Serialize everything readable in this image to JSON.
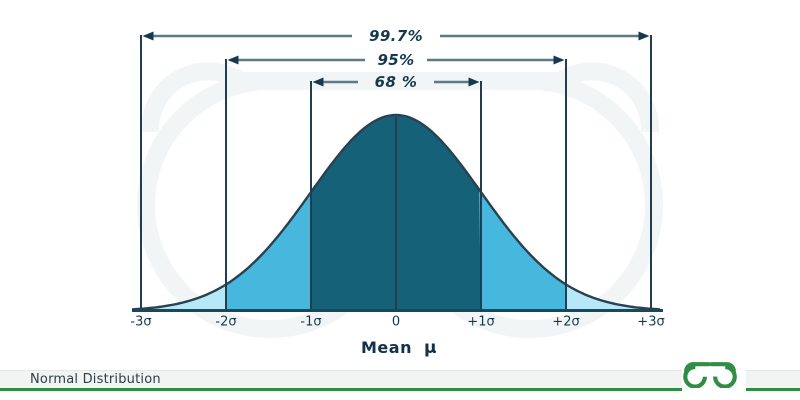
{
  "figure": {
    "mean_label": "Mean",
    "mean_symbol": "μ"
  },
  "footer": {
    "caption": "Normal Distribution"
  },
  "brand": {
    "logo_icon": "geeksforgeeks-logo",
    "watermark_icon": "geeksforgeeks-watermark",
    "green_hex": "#2f8d46",
    "watermark_hex": "#f2f5f6"
  },
  "chart_data": {
    "type": "area",
    "title": "Normal Distribution",
    "xlabel": "Mean μ",
    "distribution": "gaussian",
    "mean": 0,
    "categories": [
      "-3σ",
      "-2σ",
      "-1σ",
      "0",
      "+1σ",
      "+2σ",
      "+3σ"
    ],
    "x_sigma_values": [
      -3,
      -2,
      -1,
      0,
      1,
      2,
      3
    ],
    "coverage": [
      {
        "range": "μ ± 1σ",
        "sigma": 1,
        "percent": "68 %",
        "value": 68
      },
      {
        "range": "μ ± 2σ",
        "sigma": 2,
        "percent": "95%",
        "value": 95
      },
      {
        "range": "μ ± 3σ",
        "sigma": 3,
        "percent": "99.7%",
        "value": 99.7
      }
    ],
    "legend": "none",
    "grid": "off",
    "region_colors": {
      "core_1sigma": "#156177",
      "mid_2sigma": "#47b7dd",
      "tail_3sigma": "#b6e8f9"
    },
    "line_colors": {
      "curve_stroke": "#2a4150",
      "sigma_lines": "#203e4f",
      "axis": "#154a5c",
      "arrow_shaft": "#5d7a8b",
      "arrow_head": "#16384e",
      "label_text": "#16384e"
    }
  }
}
